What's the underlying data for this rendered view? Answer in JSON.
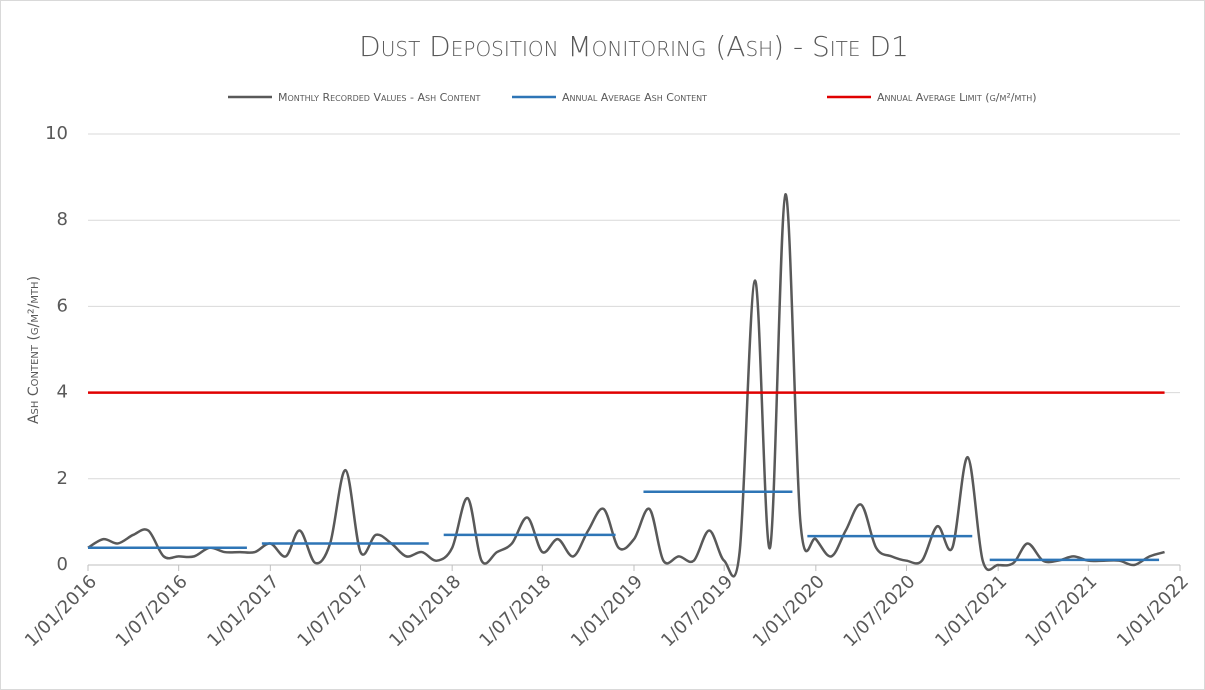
{
  "chart_data": {
    "type": "line",
    "title": "Dust Deposition Monitoring (Ash) - Site D1",
    "y_label": "Ash Content (g/m²/mth)",
    "x": [
      "2016-01-01",
      "2016-02-01",
      "2016-03-01",
      "2016-04-01",
      "2016-05-01",
      "2016-06-01",
      "2016-07-01",
      "2016-08-01",
      "2016-09-01",
      "2016-10-01",
      "2016-11-01",
      "2016-12-01",
      "2017-01-01",
      "2017-02-01",
      "2017-03-01",
      "2017-04-01",
      "2017-05-01",
      "2017-06-01",
      "2017-07-01",
      "2017-08-01",
      "2017-09-01",
      "2017-10-01",
      "2017-11-01",
      "2017-12-01",
      "2018-01-01",
      "2018-02-01",
      "2018-03-01",
      "2018-04-01",
      "2018-05-01",
      "2018-06-01",
      "2018-07-01",
      "2018-08-01",
      "2018-09-01",
      "2018-10-01",
      "2018-11-01",
      "2018-12-01",
      "2019-01-01",
      "2019-02-01",
      "2019-03-01",
      "2019-04-01",
      "2019-05-01",
      "2019-06-01",
      "2019-07-01",
      "2019-08-01",
      "2019-09-01",
      "2019-10-01",
      "2019-11-01",
      "2019-12-01",
      "2020-01-01",
      "2020-02-01",
      "2020-03-01",
      "2020-04-01",
      "2020-05-01",
      "2020-06-01",
      "2020-07-01",
      "2020-08-01",
      "2020-09-01",
      "2020-10-01",
      "2020-11-01",
      "2020-12-01",
      "2021-01-01",
      "2021-02-01",
      "2021-03-01",
      "2021-04-01",
      "2021-05-01",
      "2021-06-01",
      "2021-07-01",
      "2021-08-01",
      "2021-09-01",
      "2021-10-01",
      "2021-11-01",
      "2021-12-01"
    ],
    "series": [
      {
        "name": "Monthly Recorded Values - Ash Content",
        "color": "#595959",
        "values": [
          0.4,
          0.6,
          0.5,
          0.7,
          0.8,
          0.2,
          0.2,
          0.2,
          0.4,
          0.3,
          0.3,
          0.3,
          0.5,
          0.2,
          0.8,
          0.05,
          0.5,
          2.2,
          0.3,
          0.7,
          0.5,
          0.2,
          0.3,
          0.1,
          0.4,
          1.55,
          0.1,
          0.3,
          0.5,
          1.1,
          0.3,
          0.6,
          0.2,
          0.8,
          1.3,
          0.4,
          0.6,
          1.3,
          0.1,
          0.2,
          0.1,
          0.8,
          0.1,
          0.3,
          6.6,
          0.4,
          8.6,
          1.0,
          0.6,
          0.2,
          0.8,
          1.4,
          0.4,
          0.2,
          0.1,
          0.1,
          0.9,
          0.4,
          2.5,
          0.1,
          0.0,
          0.05,
          0.5,
          0.1,
          0.1,
          0.2,
          0.1,
          0.1,
          0.1,
          0.0,
          0.2,
          0.3
        ]
      },
      {
        "name": "Annual Average Ash Content",
        "color": "#2e75b6",
        "segments": [
          {
            "start": "2016-01-01",
            "end": "2016-11-15",
            "value": 0.4
          },
          {
            "start": "2016-12-15",
            "end": "2017-11-15",
            "value": 0.5
          },
          {
            "start": "2017-12-15",
            "end": "2018-11-25",
            "value": 0.7
          },
          {
            "start": "2019-01-20",
            "end": "2019-11-15",
            "value": 1.7
          },
          {
            "start": "2019-12-15",
            "end": "2020-11-10",
            "value": 0.67
          },
          {
            "start": "2020-12-15",
            "end": "2021-11-20",
            "value": 0.12
          }
        ]
      },
      {
        "name": "Annual Average Limit (g/m²/mth)",
        "color": "#e00000",
        "segments": [
          {
            "start": "2016-01-01",
            "end": "2021-12-01",
            "value": 4
          }
        ]
      }
    ],
    "xlim": [
      "2016-01-01",
      "2022-01-01"
    ],
    "xticks": [
      {
        "value": "2016-01-01",
        "label": "1/01/2016"
      },
      {
        "value": "2016-07-01",
        "label": "1/07/2016"
      },
      {
        "value": "2017-01-01",
        "label": "1/01/2017"
      },
      {
        "value": "2017-07-01",
        "label": "1/07/2017"
      },
      {
        "value": "2018-01-01",
        "label": "1/01/2018"
      },
      {
        "value": "2018-07-01",
        "label": "1/07/2018"
      },
      {
        "value": "2019-01-01",
        "label": "1/01/2019"
      },
      {
        "value": "2019-07-01",
        "label": "1/07/2019"
      },
      {
        "value": "2020-01-01",
        "label": "1/01/2020"
      },
      {
        "value": "2020-07-01",
        "label": "1/07/2020"
      },
      {
        "value": "2021-01-01",
        "label": "1/01/2021"
      },
      {
        "value": "2021-07-01",
        "label": "1/07/2021"
      },
      {
        "value": "2022-01-01",
        "label": "1/01/2022"
      }
    ],
    "ylim": [
      0,
      10
    ],
    "yticks": [
      0,
      2,
      4,
      6,
      8,
      10
    ],
    "grid": true,
    "legend": "top",
    "smooth": true
  }
}
